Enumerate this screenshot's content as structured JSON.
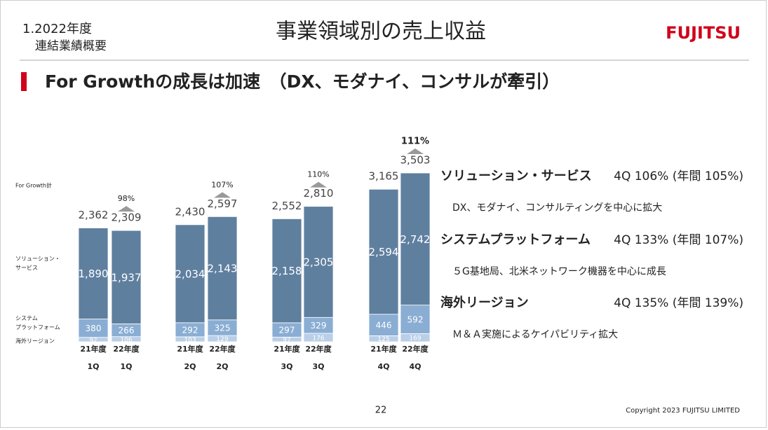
{
  "header": {
    "section": "1.2022年度",
    "section_sub": "連結業績概要",
    "title": "事業領域別の売上収益",
    "logo": "FUJITSU",
    "headline": "For Growthの成長は加速　（DX、モダナイ、コンサルが牽引）"
  },
  "chart_data": {
    "type": "stacked-bar",
    "categories": [
      "21年度",
      "22年度",
      "21年度",
      "22年度",
      "21年度",
      "22年度",
      "21年度",
      "22年度"
    ],
    "quarters": [
      "1Q",
      "1Q",
      "2Q",
      "2Q",
      "3Q",
      "3Q",
      "4Q",
      "4Q"
    ],
    "series": [
      {
        "name": "海外リージョン",
        "color": "#b9cfe8",
        "values": [
          92,
          106,
          103,
          129,
          97,
          176,
          125,
          169
        ]
      },
      {
        "name": "システムプラットフォーム",
        "color": "#8aadd3",
        "values": [
          380,
          266,
          292,
          325,
          297,
          329,
          446,
          592
        ]
      },
      {
        "name": "ソリューション・サービス",
        "color": "#5f7f9f",
        "values": [
          1890,
          1937,
          2034,
          2143,
          2158,
          2305,
          2594,
          2742
        ],
        "value_labels": [
          "1,890",
          "1,937",
          "2,034",
          "2,143",
          "2,158",
          "2,305",
          "2,594",
          "2,742"
        ]
      }
    ],
    "totals": {
      "name": "For Growth計",
      "values": [
        2362,
        2309,
        2430,
        2597,
        2552,
        2810,
        3165,
        3503
      ],
      "value_labels": [
        "2,362",
        "2,309",
        "2,430",
        "2,597",
        "2,552",
        "2,810",
        "3,165",
        "3,503"
      ]
    },
    "growth": {
      "values": [
        98,
        107,
        110,
        111
      ],
      "value_labels": [
        "98%",
        "107%",
        "110%",
        "111%"
      ]
    }
  },
  "notes": [
    {
      "title": "ソリューション・サービス",
      "metric": "4Q 106% (年間 105%)",
      "text": "DX、モダナイ、コンサルティングを中心に拡大"
    },
    {
      "title": "システムプラットフォーム",
      "metric": "4Q 133% (年間 107%)",
      "text": "５G基地局、北米ネットワーク機器を中心に成長"
    },
    {
      "title": "海外リージョン",
      "metric": "4Q 135% (年間 139%)",
      "text": "Ｍ＆Ａ実施によるケイパビリティ拡大"
    }
  ],
  "footer": {
    "page": "22",
    "copyright": "Copyright 2023 FUJITSU LIMITED"
  }
}
